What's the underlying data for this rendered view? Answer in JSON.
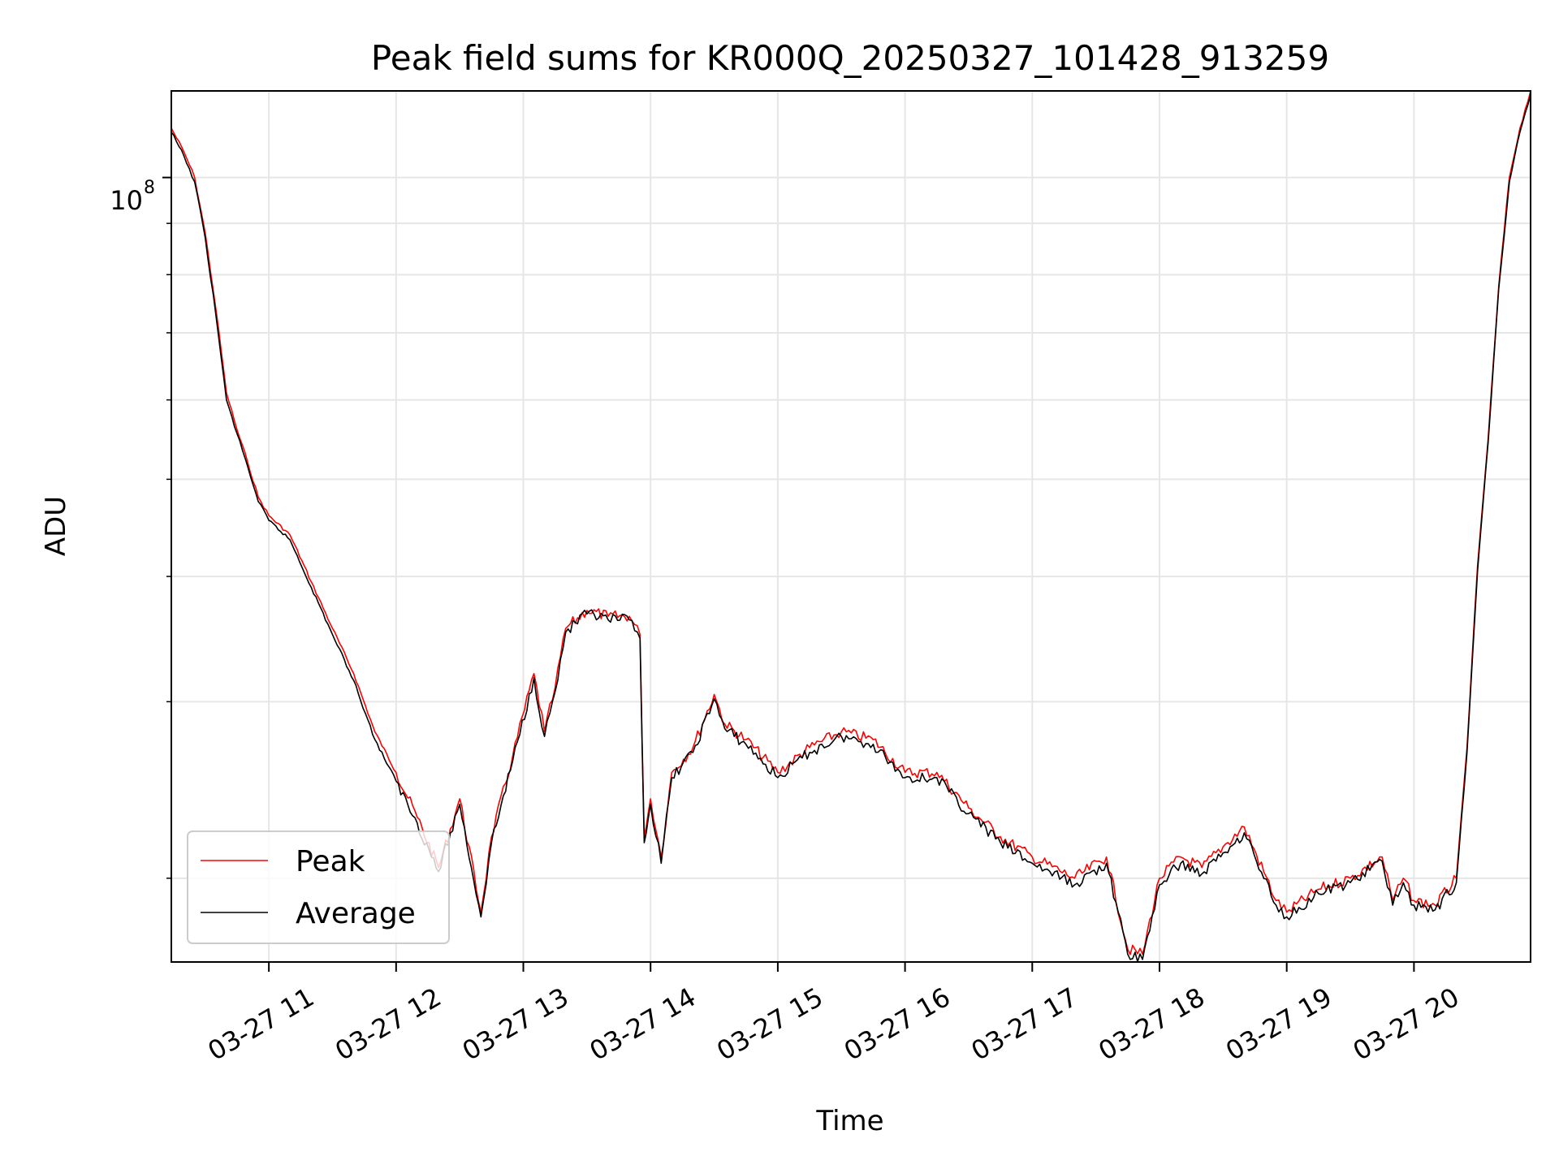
{
  "chart_data": {
    "type": "line",
    "title": "Peak field sums for KR000Q_20250327_101428_913259",
    "xlabel": "Time",
    "ylabel": "ADU",
    "yscale": "log",
    "grid": true,
    "legend_position": "lower-left",
    "xlim": [
      "2025-03-27 10:14",
      "2025-03-27 20:55"
    ],
    "ylim": [
      16500000,
      122000000
    ],
    "x_ticks": [
      "03-27 11",
      "03-27 12",
      "03-27 13",
      "03-27 14",
      "03-27 15",
      "03-27 16",
      "03-27 17",
      "03-27 18",
      "03-27 19",
      "03-27 20"
    ],
    "y_tick_label": {
      "base": "10",
      "exponent": "8"
    },
    "x": [
      "2025-03-27 10:14",
      "2025-03-27 10:20",
      "2025-03-27 10:25",
      "2025-03-27 10:30",
      "2025-03-27 10:35",
      "2025-03-27 10:40",
      "2025-03-27 10:45",
      "2025-03-27 10:50",
      "2025-03-27 10:55",
      "2025-03-27 11:00",
      "2025-03-27 11:10",
      "2025-03-27 11:20",
      "2025-03-27 11:30",
      "2025-03-27 11:40",
      "2025-03-27 11:50",
      "2025-03-27 12:00",
      "2025-03-27 12:10",
      "2025-03-27 12:20",
      "2025-03-27 12:30",
      "2025-03-27 12:40",
      "2025-03-27 12:45",
      "2025-03-27 12:55",
      "2025-03-27 13:05",
      "2025-03-27 13:10",
      "2025-03-27 13:15",
      "2025-03-27 13:20",
      "2025-03-27 13:30",
      "2025-03-27 13:40",
      "2025-03-27 13:50",
      "2025-03-27 13:55",
      "2025-03-27 13:57",
      "2025-03-27 14:00",
      "2025-03-27 14:05",
      "2025-03-27 14:10",
      "2025-03-27 14:20",
      "2025-03-27 14:30",
      "2025-03-27 14:35",
      "2025-03-27 14:45",
      "2025-03-27 15:00",
      "2025-03-27 15:15",
      "2025-03-27 15:30",
      "2025-03-27 15:45",
      "2025-03-27 16:00",
      "2025-03-27 16:15",
      "2025-03-27 16:30",
      "2025-03-27 16:45",
      "2025-03-27 17:00",
      "2025-03-27 17:20",
      "2025-03-27 17:35",
      "2025-03-27 17:45",
      "2025-03-27 17:52",
      "2025-03-27 18:00",
      "2025-03-27 18:10",
      "2025-03-27 18:20",
      "2025-03-27 18:30",
      "2025-03-27 18:40",
      "2025-03-27 18:55",
      "2025-03-27 19:00",
      "2025-03-27 19:15",
      "2025-03-27 19:30",
      "2025-03-27 19:45",
      "2025-03-27 19:50",
      "2025-03-27 19:55",
      "2025-03-27 20:00",
      "2025-03-27 20:10",
      "2025-03-27 20:20",
      "2025-03-27 20:25",
      "2025-03-27 20:30",
      "2025-03-27 20:35",
      "2025-03-27 20:40",
      "2025-03-27 20:45",
      "2025-03-27 20:50",
      "2025-03-27 20:55"
    ],
    "series": [
      {
        "name": "Peak",
        "color": "#ff0000",
        "values": [
          112000000,
          106000000,
          100000000,
          88000000,
          74000000,
          61000000,
          56000000,
          52000000,
          48000000,
          46000000,
          44000000,
          39500000,
          35500000,
          32000000,
          28000000,
          25500000,
          23000000,
          20500000,
          24000000,
          18500000,
          22000000,
          26500000,
          32000000,
          28000000,
          31000000,
          35500000,
          37000000,
          36500000,
          36500000,
          35000000,
          22000000,
          24000000,
          21000000,
          25500000,
          27000000,
          30500000,
          28500000,
          27500000,
          25500000,
          27000000,
          28000000,
          27500000,
          25500000,
          25500000,
          23500000,
          22000000,
          21000000,
          20000000,
          21000000,
          17000000,
          16800000,
          20000000,
          21000000,
          20500000,
          21500000,
          22500000,
          19000000,
          18500000,
          19500000,
          20000000,
          21000000,
          19000000,
          20000000,
          19000000,
          18800000,
          20000000,
          27000000,
          41000000,
          55000000,
          78000000,
          100000000,
          112000000,
          122000000
        ]
      },
      {
        "name": "Average",
        "color": "#000000",
        "values": [
          111000000,
          105000000,
          99000000,
          87000000,
          73000000,
          60000000,
          55500000,
          51500000,
          47500000,
          45500000,
          43500000,
          39000000,
          35000000,
          31500000,
          27500000,
          25000000,
          22700000,
          20300000,
          23700000,
          18300000,
          21700000,
          26200000,
          31700000,
          27700000,
          30700000,
          35200000,
          36700000,
          36200000,
          36200000,
          34700000,
          21700000,
          23700000,
          20700000,
          25200000,
          26700000,
          30200000,
          28200000,
          27200000,
          25200000,
          26700000,
          27700000,
          27200000,
          25200000,
          25200000,
          23200000,
          21700000,
          20700000,
          19700000,
          20700000,
          16800000,
          16600000,
          19700000,
          20700000,
          20200000,
          21200000,
          22200000,
          18800000,
          18300000,
          19300000,
          19800000,
          20800000,
          18800000,
          19800000,
          18800000,
          18600000,
          19800000,
          26700000,
          40500000,
          54500000,
          77500000,
          99000000,
          111000000,
          121000000
        ]
      }
    ]
  }
}
